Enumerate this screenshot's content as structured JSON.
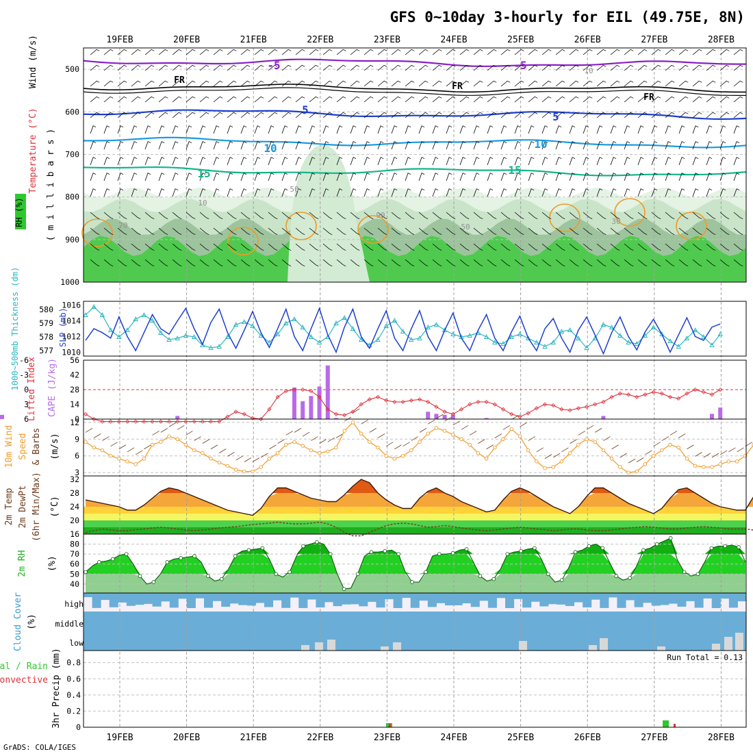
{
  "title": "GFS 0~10day 3-hourly for EIL (49.75E, 8N)",
  "credit": "GrADS: COLA/IGES",
  "dates": [
    "19FEB",
    "20FEB",
    "21FEB",
    "22FEB",
    "23FEB",
    "24FEB",
    "25FEB",
    "26FEB",
    "27FEB",
    "28FEB"
  ],
  "run_total": "Run Total = 0.13",
  "colors": {
    "purple": "#8a1fc4",
    "black": "#000000",
    "blue": "#1c3fcf",
    "skyblue": "#1a9ae0",
    "teal": "#13b58a",
    "cyan": "#2ab6c0",
    "red": "#e0303a",
    "orange": "#f09a28",
    "brown": "#6b3a1a",
    "green": "#2ec82e",
    "cloud": "#6aaed8",
    "lavender": "#f4f0f8"
  },
  "chart_data": [
    {
      "type": "heatmap",
      "name_text": "upper-air",
      "ylabels": {
        "rh": "RH (%)",
        "temp": "Temperature (°C)",
        "wind": "Wind (m/s)",
        "mb": "( m i l l i b a r s )"
      },
      "yticks": [
        "500",
        "600",
        "700",
        "800",
        "900",
        "1000"
      ],
      "ylim": [
        450,
        1000
      ],
      "isotherm_labels": [
        "-5",
        "FR",
        "5",
        "10",
        "15"
      ],
      "isotherm_levels": [
        {
          "t": -5,
          "p": 480
        },
        {
          "t": 0,
          "p": 540
        },
        {
          "t": 5,
          "p": 600
        },
        {
          "t": 10,
          "p": 667
        },
        {
          "t": 15,
          "p": 735
        }
      ],
      "rh_labels": [
        "10",
        "50",
        "70",
        "90",
        "30"
      ]
    },
    {
      "type": "line",
      "ylabels": {
        "thk": "1000~500mb Thickness (dm)",
        "slp": "SLP (mb)"
      },
      "thk_ticks": [
        "580",
        "579",
        "578",
        "577"
      ],
      "slp_ticks": [
        "1016",
        "1014",
        "1012",
        "1010"
      ],
      "thk_lim": [
        576.6,
        580.6
      ],
      "slp_lim": [
        1009.5,
        1016.5
      ],
      "series": [
        {
          "name": "SLP",
          "values": [
            1011.5,
            1013.0,
            1012.5,
            1011.8,
            1014.5,
            1012.0,
            1010.2,
            1012.5,
            1014.8,
            1013.0,
            1012.3,
            1014.0,
            1015.6,
            1013.0,
            1011.0,
            1013.8,
            1015.5,
            1012.5,
            1010.5,
            1012.8,
            1015.2,
            1012.5,
            1010.6,
            1013.0,
            1015.5,
            1012.0,
            1010.2,
            1013.0,
            1015.6,
            1012.2,
            1010.0,
            1013.2,
            1015.5,
            1012.0,
            1010.5,
            1013.0,
            1015.3,
            1011.8,
            1010.2,
            1013.0,
            1015.3,
            1012.0,
            1010.2,
            1012.8,
            1015.0,
            1011.8,
            1010.2,
            1012.8,
            1014.8,
            1011.8,
            1010.2,
            1012.6,
            1014.6,
            1011.8,
            1010.2,
            1013.0,
            1014.3,
            1011.8,
            1010.0,
            1012.8,
            1014.5,
            1012.2,
            1009.8,
            1012.5,
            1014.5,
            1012.0,
            1010.3,
            1012.6,
            1014.2,
            1012.3,
            1010.0,
            1012.2,
            1014.4,
            1012.0,
            1011.5,
            1013.2,
            1013.6
          ]
        },
        {
          "name": "Thickness",
          "values": [
            579.6,
            580.2,
            579.6,
            578.5,
            578.0,
            578.5,
            579.3,
            579.6,
            579.2,
            578.3,
            577.8,
            577.9,
            578.1,
            578.0,
            577.4,
            577.2,
            577.3,
            578.0,
            578.9,
            579.1,
            578.8,
            578.1,
            577.6,
            578.2,
            579.0,
            579.3,
            578.7,
            578.0,
            577.6,
            578.0,
            579.0,
            579.4,
            578.6,
            577.8,
            577.4,
            577.8,
            578.8,
            579.2,
            578.4,
            577.8,
            577.9,
            578.7,
            578.9,
            578.5,
            578.2,
            578.0,
            578.1,
            578.3,
            578.0,
            577.6,
            577.5,
            578.0,
            578.2,
            577.9,
            577.6,
            577.3,
            577.6,
            578.4,
            578.5,
            577.9,
            577.2,
            577.9,
            578.9,
            578.7,
            578.1,
            577.6,
            577.5,
            578.1,
            578.7,
            578.2,
            577.7,
            577.3,
            577.9,
            578.5,
            578.0,
            577.4,
            578.2
          ]
        }
      ]
    },
    {
      "type": "bar",
      "ylabels": {
        "li": "Lifted Index",
        "cape": "CAPE (J/kg)"
      },
      "li_ticks": [
        "-6",
        "-3",
        "0",
        "3",
        "6"
      ],
      "cape_ticks": [
        "56",
        "42",
        "28",
        "14",
        "0"
      ],
      "cape_lim": [
        0,
        56
      ],
      "li_lim": [
        -6,
        6
      ],
      "series": [
        {
          "name": "Lifted Index",
          "values": [
            5.0,
            6.0,
            6.5,
            6.5,
            6.5,
            6.5,
            6.5,
            6.5,
            6.5,
            6.5,
            6.5,
            6.5,
            6.5,
            6.5,
            6.5,
            6.5,
            6.5,
            5.5,
            4.5,
            5.0,
            5.8,
            6.0,
            4.0,
            1.5,
            0.3,
            0.0,
            0.0,
            0.3,
            1.5,
            4.0,
            5.0,
            5.2,
            4.5,
            3.0,
            2.0,
            1.5,
            2.2,
            2.5,
            2.5,
            2.2,
            2.0,
            2.5,
            3.5,
            4.5,
            5.0,
            4.0,
            3.0,
            2.5,
            2.5,
            3.0,
            4.0,
            5.0,
            5.5,
            4.8,
            3.8,
            3.0,
            3.2,
            4.0,
            4.2,
            3.8,
            3.5,
            3.0,
            2.5,
            1.5,
            0.8,
            1.0,
            1.5,
            1.0,
            0.5,
            0.8,
            1.5,
            1.8,
            0.8,
            0.0,
            0.5,
            1.0,
            0.0
          ]
        },
        {
          "name": "CAPE",
          "values": [
            0,
            0,
            0,
            0,
            0,
            0,
            0,
            0,
            0,
            0,
            0,
            3,
            0,
            0,
            0,
            0,
            0,
            0,
            0,
            0,
            0,
            0,
            0,
            0,
            0,
            30,
            17,
            22,
            31,
            51,
            1,
            0,
            0,
            0,
            0,
            0,
            0,
            0,
            0,
            0,
            0,
            7,
            5,
            4,
            4,
            0,
            0,
            0,
            1,
            0,
            0,
            0,
            0,
            0,
            0,
            0,
            0,
            0,
            0,
            0,
            0,
            0,
            3,
            0,
            0,
            0,
            0,
            0,
            0,
            0,
            0,
            0,
            0,
            0,
            0,
            5,
            11,
            4
          ]
        }
      ]
    },
    {
      "type": "line",
      "ylabels": {
        "w1": "10m Wind",
        "w2": "Speed",
        "w3": "& Barbs",
        "unit": "(m/s)"
      },
      "yticks": [
        "12",
        "9",
        "6",
        "3"
      ],
      "ylim": [
        2.4,
        12.6
      ],
      "series": [
        {
          "name": "10m Wind Speed",
          "values": [
            8.5,
            7.5,
            7.0,
            6.0,
            5.5,
            5.0,
            4.5,
            5.5,
            8.0,
            8.5,
            9.5,
            9.0,
            8.0,
            7.0,
            6.5,
            5.5,
            4.8,
            4.2,
            3.5,
            3.2,
            3.2,
            4.0,
            5.5,
            6.5,
            8.0,
            8.5,
            7.8,
            7.0,
            6.5,
            6.8,
            7.5,
            10.5,
            12.0,
            10.0,
            8.5,
            7.5,
            6.0,
            5.5,
            6.0,
            7.0,
            8.5,
            10.0,
            11.0,
            10.5,
            9.8,
            9.0,
            8.0,
            6.5,
            5.5,
            7.5,
            9.0,
            10.8,
            9.5,
            7.0,
            5.0,
            3.8,
            4.0,
            5.0,
            6.5,
            8.0,
            9.0,
            8.5,
            7.0,
            5.5,
            4.0,
            3.0,
            3.2,
            4.5,
            6.0,
            7.0,
            8.0,
            7.5,
            5.5,
            4.2,
            4.0,
            4.0,
            4.5,
            5.0,
            5.0,
            6.0,
            8.0,
            8.5,
            9.0,
            7.0
          ]
        }
      ]
    },
    {
      "type": "area",
      "ylabels": {
        "t1": "2m Temp",
        "t2": "2m DewPt",
        "t3": "(6hr Min/Max)",
        "unit": "(°C)"
      },
      "yticks": [
        "32",
        "28",
        "24",
        "20",
        "16"
      ],
      "ylim": [
        16,
        33
      ],
      "series": [
        {
          "name": "2m Temp",
          "values": [
            26,
            25.5,
            25,
            24.5,
            24,
            23,
            23,
            24.5,
            26.5,
            28.5,
            29.5,
            29,
            28,
            27,
            26,
            25,
            24,
            23,
            22.5,
            22,
            21.5,
            23.5,
            27,
            29.5,
            29.5,
            28.5,
            27.5,
            26.5,
            26,
            25.5,
            25.5,
            27.5,
            30,
            32,
            31,
            28,
            26,
            24.5,
            23.5,
            23.5,
            26.5,
            28.5,
            29.5,
            28,
            27,
            25.5,
            24.5,
            23.5,
            22.5,
            23,
            26,
            28.5,
            29.5,
            28.5,
            27,
            25.5,
            24,
            23,
            22,
            24,
            27,
            29.5,
            29.5,
            28,
            26.5,
            25,
            24,
            23,
            22,
            23.5,
            26.5,
            29,
            29.5,
            28,
            26.5,
            25,
            24,
            23.5,
            23,
            23,
            27,
            28
          ]
        },
        {
          "name": "2m DewPt",
          "values": [
            16.5,
            17,
            17.5,
            17.2,
            17,
            17,
            17.3,
            17.5,
            17.8,
            18,
            17.8,
            17.5,
            17.2,
            17,
            17.2,
            17.5,
            17.8,
            18,
            18.2,
            18.5,
            18.8,
            19,
            19.2,
            19.5,
            19.2,
            19,
            19,
            19.2,
            19.5,
            19,
            18,
            16.5,
            15.5,
            15.5,
            16.5,
            17.5,
            18.5,
            19,
            19.2,
            19,
            18.5,
            18,
            18.2,
            18.5,
            18.2,
            17.8,
            17.5,
            17.2,
            17,
            17.2,
            17.5,
            17.8,
            18,
            17.8,
            17.5,
            17.3,
            17,
            17.2,
            17.5,
            17.5,
            17.2,
            17,
            17,
            17.2,
            17.5,
            17.8,
            18,
            18.2,
            18,
            17.8,
            17.5,
            17.5,
            17.8,
            18,
            18.2,
            18,
            17.8,
            17.5,
            17.5,
            17.5,
            17.2,
            17
          ]
        }
      ]
    },
    {
      "type": "area",
      "ylabels": {
        "rh": "2m RH",
        "unit": "(%)"
      },
      "yticks": [
        "80",
        "70",
        "60",
        "50",
        "40"
      ],
      "ylim": [
        31,
        90
      ],
      "series": [
        {
          "name": "2m RH",
          "values": [
            52,
            58,
            62,
            63,
            65,
            69,
            70,
            60,
            48,
            40,
            42,
            50,
            62,
            65,
            66,
            67,
            68,
            62,
            48,
            43,
            45,
            55,
            68,
            73,
            74,
            75,
            76,
            65,
            50,
            47,
            52,
            68,
            78,
            80,
            82,
            80,
            70,
            50,
            35,
            36,
            50,
            68,
            72,
            72,
            73,
            74,
            70,
            52,
            42,
            42,
            52,
            68,
            70,
            70,
            71,
            74,
            75,
            62,
            48,
            43,
            45,
            55,
            70,
            72,
            73,
            75,
            76,
            65,
            50,
            42,
            44,
            56,
            72,
            74,
            78,
            80,
            76,
            62,
            48,
            44,
            46,
            58,
            74,
            76,
            80,
            83,
            86,
            64,
            52,
            48,
            50,
            62,
            76,
            78,
            78,
            79,
            77,
            62
          ]
        }
      ]
    },
    {
      "type": "bar",
      "ylabels": {
        "cc": "Cloud Cover",
        "unit": "(%)",
        "high": "high",
        "middle": "middle",
        "low": "low"
      }
    },
    {
      "type": "bar",
      "ylabels": {
        "p1": "Total / Rain",
        "p2": "Convective",
        "p3": "3hr Precip (mm)"
      },
      "yticks": [
        "0.8",
        "0.6",
        "0.4",
        "0.2",
        "0"
      ],
      "ylim": [
        0,
        0.95
      ]
    }
  ]
}
